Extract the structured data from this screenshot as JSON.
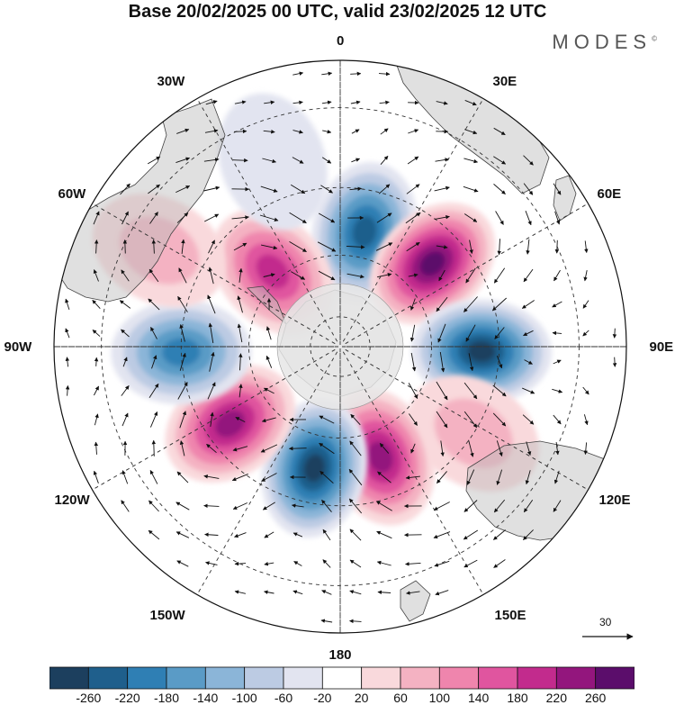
{
  "title": "Base 20/02/2025 00 UTC, valid 23/02/2025 12 UTC",
  "brand": "MODES",
  "brand_mark": "©",
  "longitude_labels": [
    "0",
    "30E",
    "60E",
    "90E",
    "120E",
    "150E",
    "180",
    "150W",
    "120W",
    "90W",
    "60W",
    "30W"
  ],
  "reference_vector": "30",
  "colorbar": {
    "ticks": [
      "-260",
      "-220",
      "-180",
      "-140",
      "-100",
      "-60",
      "-20",
      "20",
      "60",
      "100",
      "140",
      "180",
      "220",
      "260"
    ],
    "colors": [
      "#1c3f5e",
      "#1f5f8c",
      "#2f7fb4",
      "#5a9bc6",
      "#8bb5d8",
      "#bccbe3",
      "#e2e4f0",
      "#ffffff",
      "#f9d9dc",
      "#f4b2c2",
      "#ef85ad",
      "#e0559f",
      "#c22b8d",
      "#93167d",
      "#5b0d6b"
    ]
  },
  "map_style": {
    "projection": "south polar stereographic",
    "land_color": "#d9d9d9",
    "pole_mask_color": "#e6e6e6"
  },
  "anomaly_centers": [
    {
      "lon": 12,
      "lat": -52,
      "value": -240
    },
    {
      "lon": 48,
      "lat": -50,
      "value": 260
    },
    {
      "lon": 92,
      "lat": -45,
      "value": -260
    },
    {
      "lon": 123,
      "lat": -40,
      "value": 90
    },
    {
      "lon": 160,
      "lat": -52,
      "value": 250
    },
    {
      "lon": -168,
      "lat": -50,
      "value": -270
    },
    {
      "lon": -125,
      "lat": -47,
      "value": 240
    },
    {
      "lon": -92,
      "lat": -40,
      "value": -200
    },
    {
      "lon": -42,
      "lat": -57,
      "value": 200
    },
    {
      "lon": -62,
      "lat": -28,
      "value": 80
    },
    {
      "lon": -20,
      "lat": -30,
      "value": -40
    }
  ]
}
